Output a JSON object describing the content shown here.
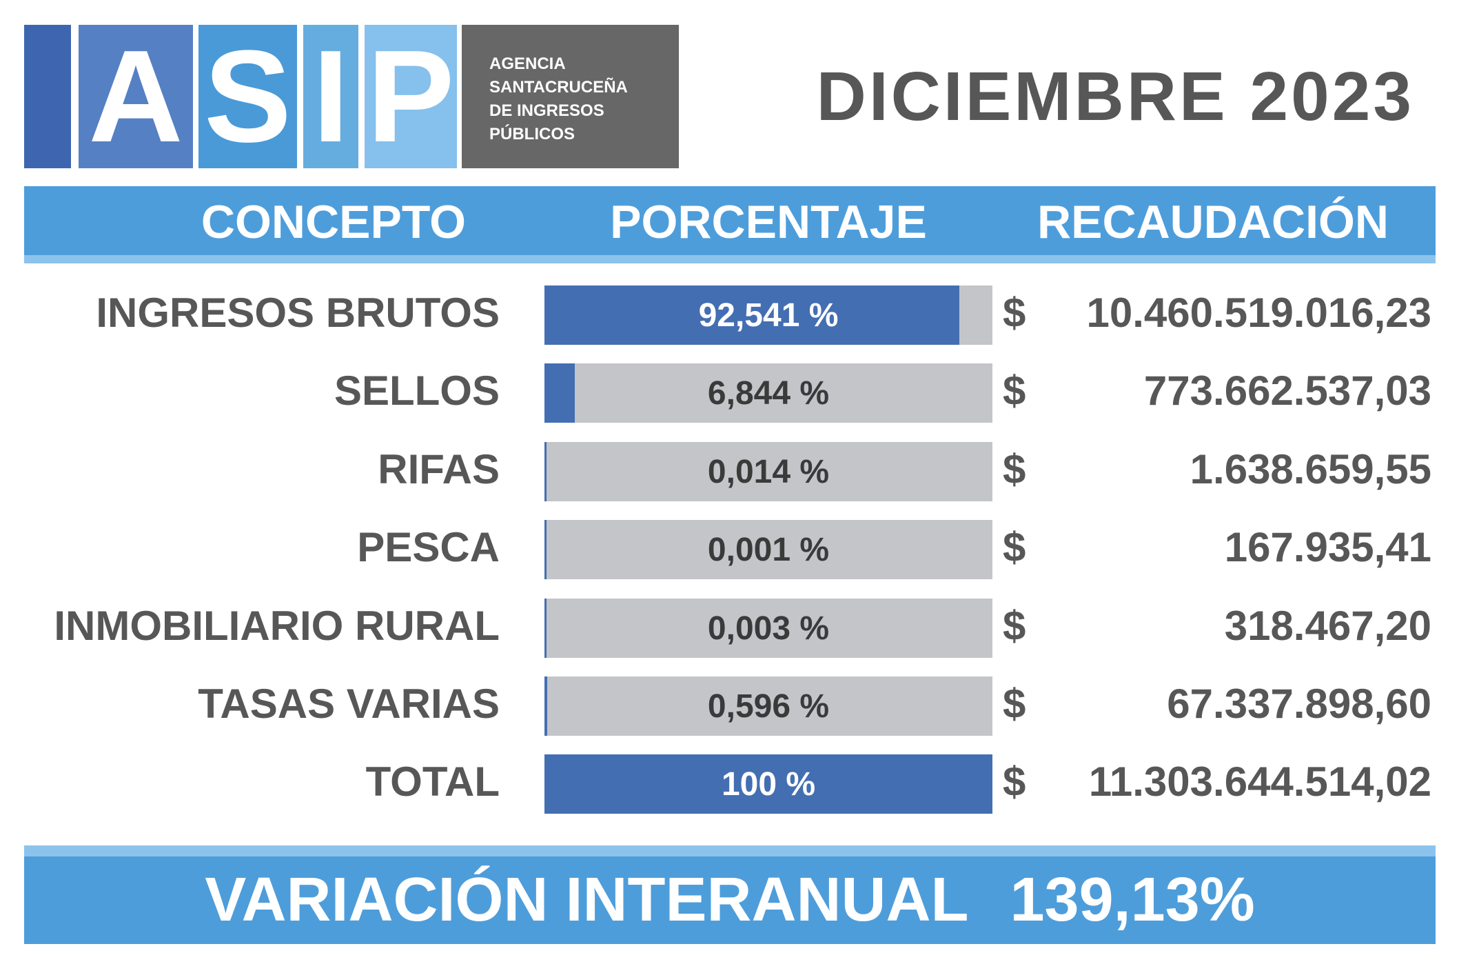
{
  "logo": {
    "letters": [
      "A",
      "S",
      "I",
      "P"
    ],
    "agency_lines": [
      "AGENCIA",
      "SANTACRUCEÑA",
      "DE INGRESOS",
      "PÚBLICOS"
    ]
  },
  "period": "DICIEMBRE 2023",
  "columns": {
    "concept": "CONCEPTO",
    "percentage": "PORCENTAJE",
    "collection": "RECAUDACIÓN"
  },
  "rows": [
    {
      "concept": "INGRESOS BRUTOS",
      "percent_label": "92,541 %",
      "percent": 92.541,
      "currency": "$",
      "amount": "10.460.519.016,23"
    },
    {
      "concept": "SELLOS",
      "percent_label": "6,844 %",
      "percent": 6.844,
      "currency": "$",
      "amount": "773.662.537,03"
    },
    {
      "concept": "RIFAS",
      "percent_label": "0,014 %",
      "percent": 0.014,
      "currency": "$",
      "amount": "1.638.659,55"
    },
    {
      "concept": "PESCA",
      "percent_label": "0,001 %",
      "percent": 0.001,
      "currency": "$",
      "amount": "167.935,41"
    },
    {
      "concept": "INMOBILIARIO RURAL",
      "percent_label": "0,003 %",
      "percent": 0.003,
      "currency": "$",
      "amount": "318.467,20"
    },
    {
      "concept": "TASAS VARIAS",
      "percent_label": "0,596 %",
      "percent": 0.596,
      "currency": "$",
      "amount": "67.337.898,60"
    },
    {
      "concept": "TOTAL",
      "percent_label": "100 %",
      "percent": 100,
      "currency": "$",
      "amount": "11.303.644.514,02"
    }
  ],
  "footer": {
    "label": "VARIACIÓN INTERANUAL",
    "value": "139,13%"
  },
  "colors": {
    "bar_fill": "#446eb2",
    "bar_track": "#c3c5c9",
    "header_blue": "#4e9ddb",
    "header_stripe": "#8cc3ec",
    "text_gray": "#575757",
    "agency_gray": "#676767"
  }
}
